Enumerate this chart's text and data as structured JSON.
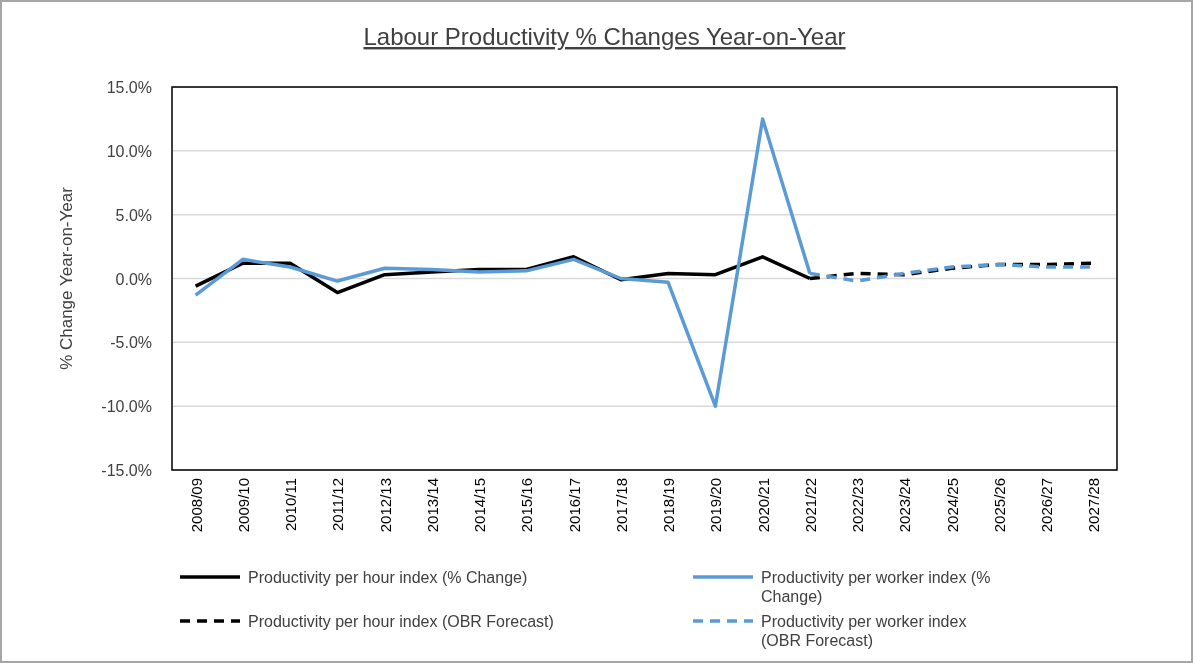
{
  "chart_data": {
    "type": "line",
    "title": "Labour Productivity % Changes Year-on-Year",
    "ylabel": "% Change Year-on-Year",
    "categories": [
      "2008/09",
      "2009/10",
      "2010/11",
      "2011/12",
      "2012/13",
      "2013/14",
      "2014/15",
      "2015/16",
      "2016/17",
      "2017/18",
      "2018/19",
      "2019/20",
      "2020/21",
      "2021/22",
      "2022/23",
      "2023/24",
      "2024/25",
      "2025/26",
      "2026/27",
      "2027/28"
    ],
    "series": [
      {
        "name": "Productivity per hour index (% Change)",
        "color": "#000000",
        "line_style": "solid",
        "values": [
          -0.6,
          1.2,
          1.2,
          -1.1,
          0.3,
          0.5,
          0.7,
          0.7,
          1.7,
          -0.1,
          0.4,
          0.3,
          1.7,
          0.0,
          null,
          null,
          null,
          null,
          null,
          null
        ]
      },
      {
        "name": "Productivity per worker index (% Change)",
        "color": "#5b9bd5",
        "line_style": "solid",
        "values": [
          -1.3,
          1.5,
          0.9,
          -0.2,
          0.8,
          0.7,
          0.5,
          0.6,
          1.5,
          0.0,
          -0.3,
          -10.0,
          12.5,
          0.4,
          null,
          null,
          null,
          null,
          null,
          null
        ]
      },
      {
        "name": "Productivity per hour index (OBR Forecast)",
        "color": "#000000",
        "line_style": "dashed",
        "values": [
          null,
          null,
          null,
          null,
          null,
          null,
          null,
          null,
          null,
          null,
          null,
          null,
          null,
          0.0,
          0.4,
          0.3,
          0.8,
          1.1,
          1.1,
          1.2
        ]
      },
      {
        "name": "Productivity per worker index (OBR Forecast)",
        "color": "#5b9bd5",
        "line_style": "dashed",
        "values": [
          null,
          null,
          null,
          null,
          null,
          null,
          null,
          null,
          null,
          null,
          null,
          null,
          null,
          0.4,
          -0.2,
          0.4,
          0.9,
          1.1,
          0.9,
          0.9
        ]
      }
    ],
    "ylim": [
      -15,
      15
    ],
    "yticks": [
      {
        "value": -15,
        "label": "-15.0%"
      },
      {
        "value": -10,
        "label": "-10.0%"
      },
      {
        "value": -5,
        "label": "-5.0%"
      },
      {
        "value": 0,
        "label": "0.0%"
      },
      {
        "value": 5,
        "label": "5.0%"
      },
      {
        "value": 10,
        "label": "10.0%"
      },
      {
        "value": 15,
        "label": "15.0%"
      }
    ],
    "grid": "y",
    "legend": "bottom",
    "marker": "none"
  }
}
